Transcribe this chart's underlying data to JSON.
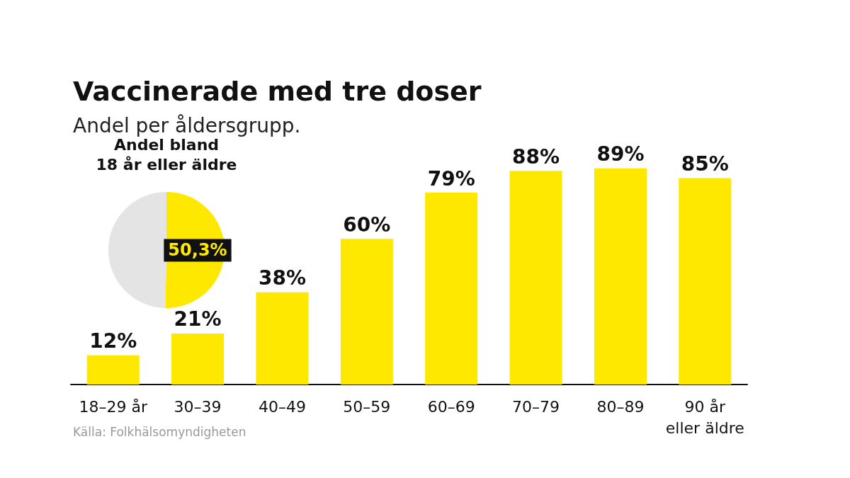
{
  "chart_data": [
    {
      "type": "bar",
      "title": "Vaccinerade med tre doser",
      "subtitle": "Andel per åldersgrupp.",
      "categories": [
        "18–29 år",
        "30–39",
        "40–49",
        "50–59",
        "60–69",
        "70–79",
        "80–89",
        "90 år\neller äldre"
      ],
      "values": [
        12,
        21,
        38,
        60,
        79,
        88,
        89,
        85
      ],
      "value_labels": [
        "12%",
        "21%",
        "38%",
        "60%",
        "79%",
        "88%",
        "89%",
        "85%"
      ],
      "color": "#ffe800",
      "grid": false,
      "annotations": [
        "Källa: Folkhälsomyndigheten"
      ]
    },
    {
      "type": "pie",
      "title": "Andel bland\n18 år eller äldre",
      "categories": [
        null,
        null
      ],
      "values": [
        50.3,
        49.7
      ],
      "colors": [
        "#ffe800",
        "#e4e4e4"
      ],
      "value_labels": [
        "50,3%",
        null
      ]
    }
  ]
}
